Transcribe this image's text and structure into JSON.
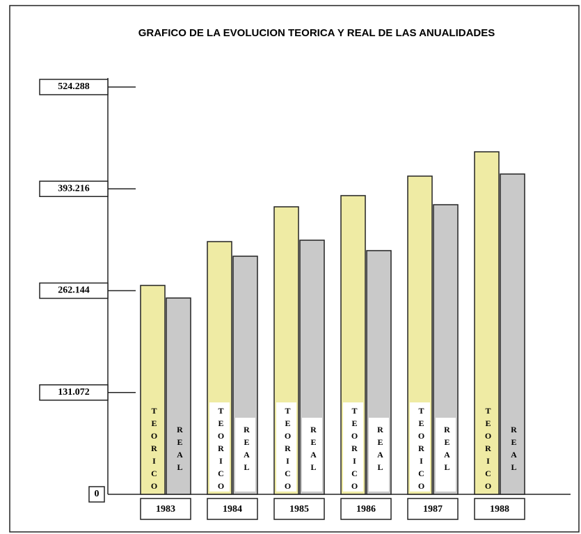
{
  "chart_data": {
    "type": "bar",
    "title": "GRAFICO DE LA EVOLUCION TEORICA Y REAL DE LAS ANUALIDADES",
    "categories": [
      "1983",
      "1984",
      "1985",
      "1986",
      "1987",
      "1988"
    ],
    "series": [
      {
        "name": "TEORICO",
        "color": "#efeba4",
        "values": [
          268900,
          325300,
          370100,
          384500,
          409600,
          440900
        ]
      },
      {
        "name": "REAL",
        "color": "#c9c9c9",
        "values": [
          252700,
          306500,
          327100,
          313700,
          372800,
          412300
        ]
      }
    ],
    "ylim": [
      0,
      524288
    ],
    "yticks": [
      0,
      {
        "value": 131072,
        "label": "131.072"
      },
      {
        "value": 262144,
        "label": "262.144"
      },
      {
        "value": 393216,
        "label": "393.216"
      },
      {
        "value": 524288,
        "label": "524.288"
      }
    ]
  }
}
